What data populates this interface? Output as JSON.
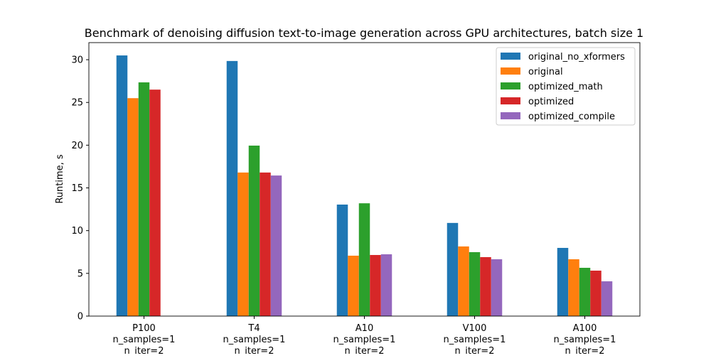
{
  "chart_data": {
    "type": "bar",
    "title": "Benchmark of denoising diffusion text-to-image generation across GPU architectures, batch size 1",
    "xlabel": "",
    "ylabel": "Runtime, s",
    "categories": [
      [
        "P100",
        "n_samples=1",
        "n_iter=2"
      ],
      [
        "T4",
        "n_samples=1",
        "n_iter=2"
      ],
      [
        "A10",
        "n_samples=1",
        "n_iter=2"
      ],
      [
        "V100",
        "n_samples=1",
        "n_iter=2"
      ],
      [
        "A100",
        "n_samples=1",
        "n_iter=2"
      ]
    ],
    "ylim": [
      0,
      32
    ],
    "yticks": [
      0,
      5,
      10,
      15,
      20,
      25,
      30
    ],
    "grid": false,
    "legend_position": "top-right",
    "series": [
      {
        "name": "original_no_xformers",
        "color": "#1f77b4",
        "values": [
          30.5,
          29.85,
          13.05,
          10.9,
          7.98
        ]
      },
      {
        "name": "original",
        "color": "#ff7f0e",
        "values": [
          25.5,
          16.8,
          7.07,
          8.15,
          6.65
        ]
      },
      {
        "name": "optimized_math",
        "color": "#2ca02c",
        "values": [
          27.35,
          19.95,
          13.2,
          7.48,
          5.65
        ]
      },
      {
        "name": "optimized",
        "color": "#d62728",
        "values": [
          26.5,
          16.8,
          7.15,
          6.9,
          5.32
        ]
      },
      {
        "name": "optimized_compile",
        "color": "#9467bd",
        "values": [
          null,
          16.45,
          7.23,
          6.65,
          4.07
        ]
      }
    ]
  }
}
